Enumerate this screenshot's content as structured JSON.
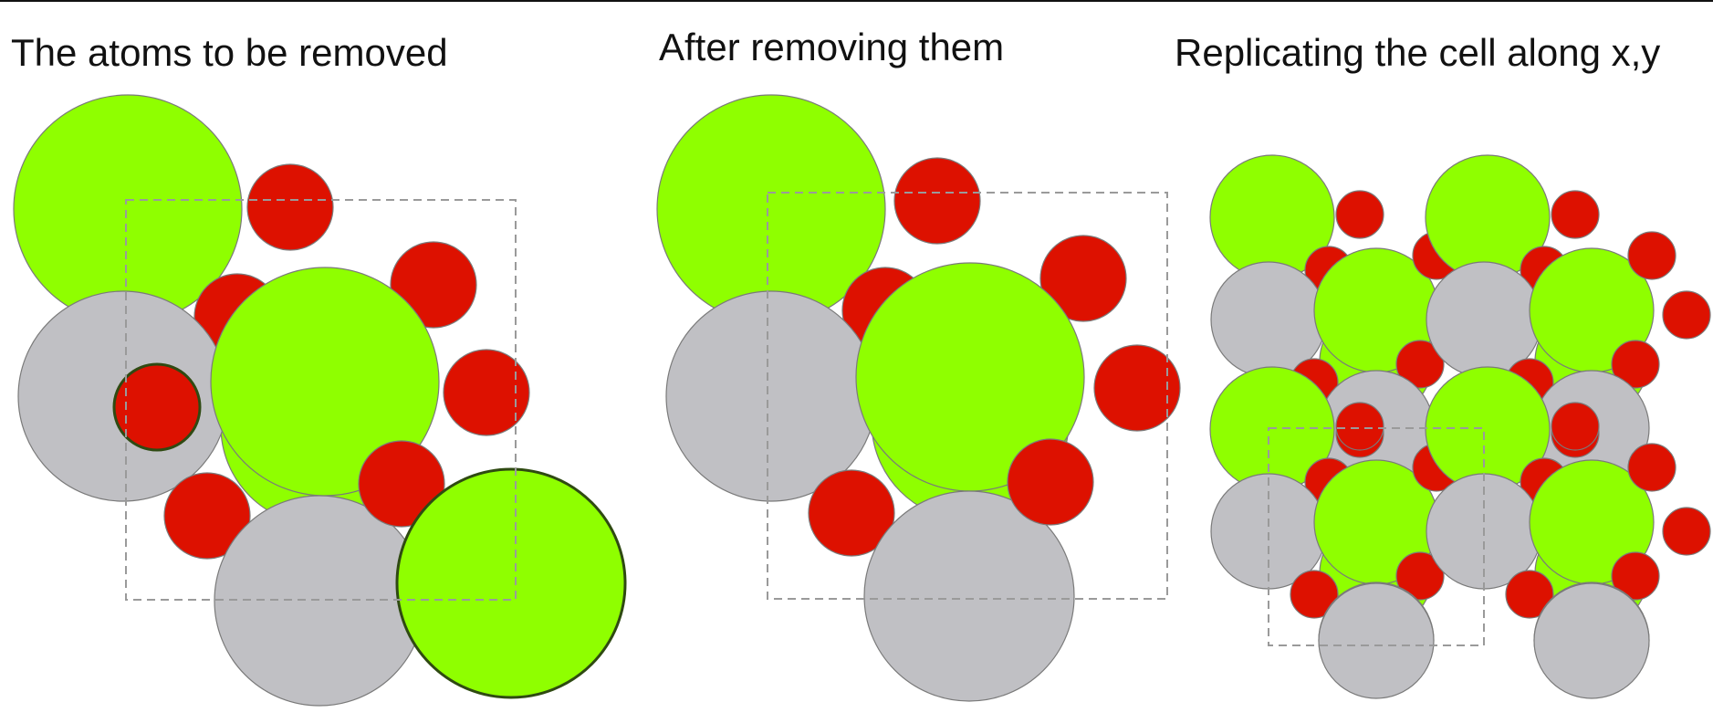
{
  "colors": {
    "green": "#8fff00",
    "red": "#dd1100",
    "gray": "#c0c0c4",
    "outline": "#7a7a7a",
    "cell_line": "#9a9a9a"
  },
  "panels": [
    {
      "title": "The atoms to be removed"
    },
    {
      "title": "After removing them"
    },
    {
      "title": "Replicating the cell along x,y"
    }
  ]
}
